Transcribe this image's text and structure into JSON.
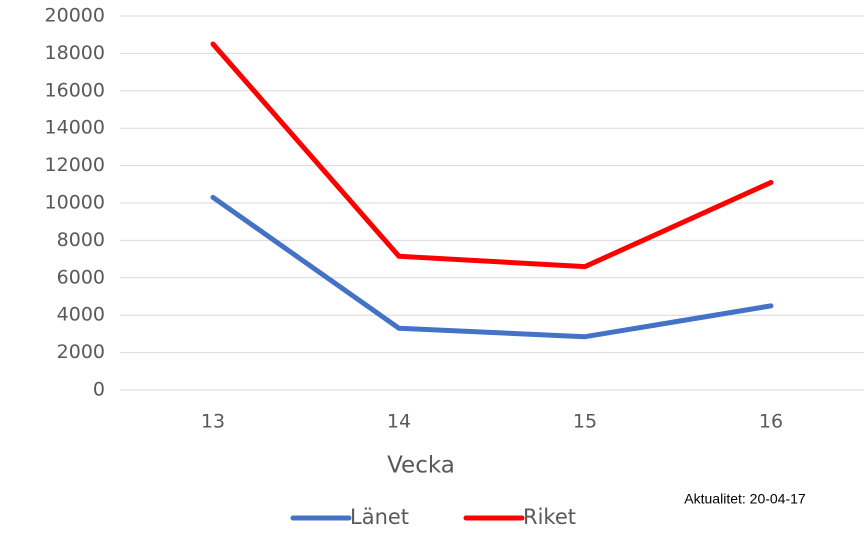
{
  "chart_data": {
    "type": "line",
    "x_label": "Vecka",
    "annotation": "Aktualitet: 20-04-17",
    "categories": [
      "13",
      "14",
      "15",
      "16"
    ],
    "series": [
      {
        "name": "Länet",
        "color": "#4472c4",
        "values": [
          10300,
          3300,
          2850,
          4500
        ]
      },
      {
        "name": "Riket",
        "color": "#ff0000",
        "values": [
          18500,
          7150,
          6600,
          11100
        ]
      }
    ],
    "ylim": [
      0,
      20000
    ],
    "yticks": [
      0,
      2000,
      4000,
      6000,
      8000,
      10000,
      12000,
      14000,
      16000,
      18000,
      20000
    ],
    "grid": true
  }
}
